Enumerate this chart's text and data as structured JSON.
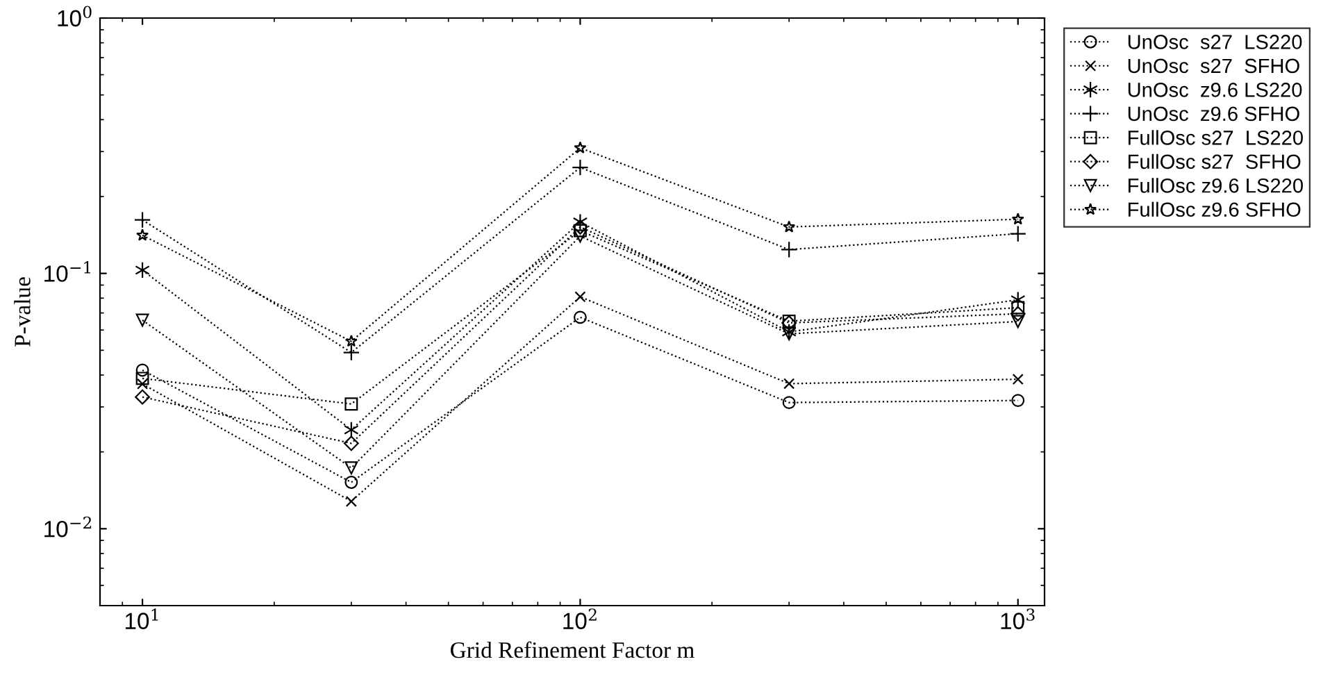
{
  "chart_data": {
    "type": "line",
    "xlabel": "Grid Refinement Factor m",
    "ylabel": "P-value",
    "log": "xy",
    "grid": false,
    "legend": "top right",
    "line_style": "dotted",
    "x": [
      10,
      30,
      100,
      300,
      1000
    ],
    "xlim": [
      8,
      1150
    ],
    "xticks": [
      {
        "value": 10,
        "label": "10$^{1}$"
      },
      {
        "value": 100,
        "label": "10$^{2}$"
      },
      {
        "value": 1000,
        "label": "10$^{3}$"
      }
    ],
    "ylim": [
      0.005,
      1
    ],
    "yticks": [
      {
        "value": 0.01,
        "label": "10$^{−2}$"
      },
      {
        "value": 0.1,
        "label": "10$^{−1}$"
      },
      {
        "value": 1,
        "label": "10$^{0}$"
      }
    ],
    "series": [
      {
        "name": "UnOsc  s27  LS220",
        "color": "#000000",
        "marker": "circle",
        "values": [
          0.0418,
          0.0152,
          0.0673,
          0.0312,
          0.0318
        ]
      },
      {
        "name": "UnOsc  s27  SFHO",
        "color": "#000000",
        "marker": "cross",
        "values": [
          0.0369,
          0.0128,
          0.081,
          0.037,
          0.0385
        ]
      },
      {
        "name": "UnOsc  z9.6 LS220",
        "color": "#000000",
        "marker": "cross",
        "values": [
          0.103,
          0.0244,
          0.159,
          0.059,
          0.0788
        ]
      },
      {
        "name": "UnOsc  z9.6 SFHO",
        "color": "#000000",
        "marker": "plus",
        "values": [
          0.162,
          0.049,
          0.26,
          0.124,
          0.143
        ]
      },
      {
        "name": "FullOsc s27  LS220",
        "color": "#000000",
        "marker": "square",
        "values": [
          0.0388,
          0.0308,
          0.147,
          0.065,
          0.0734
        ]
      },
      {
        "name": "FullOsc s27  SFHO",
        "color": "#000000",
        "marker": "diamond",
        "values": [
          0.0328,
          0.0216,
          0.152,
          0.064,
          0.0695
        ]
      },
      {
        "name": "FullOsc z9.6 LS220",
        "color": "#000000",
        "marker": "triangle",
        "values": [
          0.0656,
          0.0173,
          0.14,
          0.058,
          0.0648
        ]
      },
      {
        "name": "FullOsc z9.6 SFHO",
        "color": "#000000",
        "marker": "star",
        "values": [
          0.141,
          0.0542,
          0.31,
          0.152,
          0.163
        ]
      }
    ]
  }
}
